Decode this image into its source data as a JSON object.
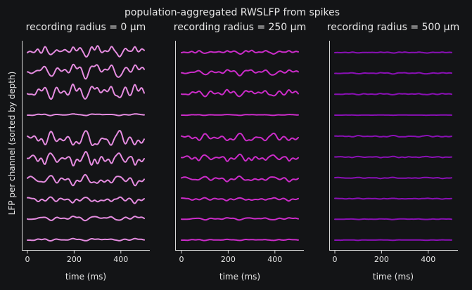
{
  "suptitle": "population-aggregated RWSLFP from spikes",
  "ylabel": "LFP per channel (sorted by depth)",
  "chart_data": [
    {
      "type": "line",
      "title": "recording radius = 0 μm",
      "xlabel": "time (ms)",
      "xlim": [
        0,
        500
      ],
      "xticks": [
        0,
        200,
        400
      ],
      "n_channels": 10,
      "color": "#e58ce0",
      "channel_amplitudes": [
        0.9,
        1.1,
        1.2,
        0.15,
        1.3,
        1.1,
        0.85,
        0.55,
        0.35,
        0.2
      ]
    },
    {
      "type": "line",
      "title": "recording radius = 250 μm",
      "xlabel": "time (ms)",
      "xlim": [
        0,
        500
      ],
      "xticks": [
        0,
        200,
        400
      ],
      "n_channels": 10,
      "color": "#cc2cc9",
      "channel_amplitudes": [
        0.3,
        0.45,
        0.55,
        0.08,
        0.65,
        0.55,
        0.42,
        0.28,
        0.18,
        0.1
      ]
    },
    {
      "type": "line",
      "title": "recording radius = 500 μm",
      "xlabel": "time (ms)",
      "xlim": [
        0,
        500
      ],
      "xticks": [
        0,
        200,
        400
      ],
      "n_channels": 10,
      "color": "#8a10b5",
      "channel_amplitudes": [
        0.08,
        0.1,
        0.1,
        0.02,
        0.12,
        0.1,
        0.09,
        0.07,
        0.05,
        0.04
      ]
    }
  ]
}
